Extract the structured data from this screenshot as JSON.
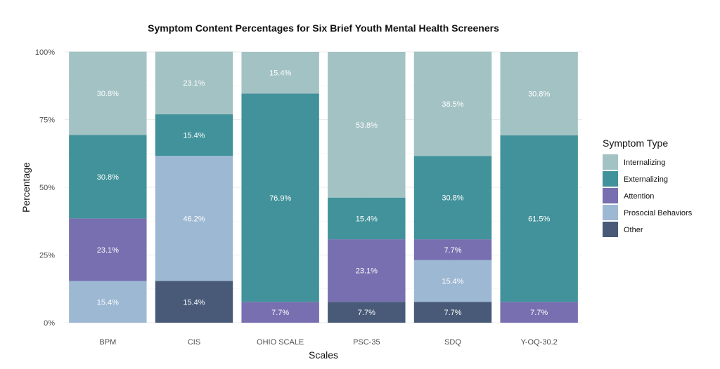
{
  "chart_data": {
    "type": "bar",
    "stacked": true,
    "title": "Symptom Content Percentages for Six Brief Youth Mental Health Screeners",
    "xlabel": "Scales",
    "ylabel": "Percentage",
    "ylim": [
      0,
      100
    ],
    "yticks": [
      "0%",
      "25%",
      "50%",
      "75%",
      "100%"
    ],
    "categories": [
      "BPM",
      "CIS",
      "OHIO SCALE",
      "PSC-35",
      "SDQ",
      "Y-OQ-30.2"
    ],
    "legend_title": "Symptom Type",
    "legend_position": "right",
    "grid": true,
    "series": [
      {
        "name": "Internalizing",
        "color": "#a3c2c4",
        "values": [
          30.8,
          23.1,
          15.4,
          53.8,
          38.5,
          30.8
        ]
      },
      {
        "name": "Externalizing",
        "color": "#41929a",
        "values": [
          30.8,
          15.4,
          76.9,
          15.4,
          30.8,
          61.5
        ]
      },
      {
        "name": "Attention",
        "color": "#776fb0",
        "values": [
          23.1,
          0,
          7.7,
          23.1,
          7.7,
          7.7
        ]
      },
      {
        "name": "Prosocial Behaviors",
        "color": "#9db8d3",
        "values": [
          15.4,
          46.2,
          0,
          0,
          15.4,
          0
        ]
      },
      {
        "name": "Other",
        "color": "#485a78",
        "values": [
          0,
          15.4,
          0,
          7.7,
          7.7,
          0
        ]
      }
    ],
    "stack_order_bottom_to_top": [
      "Other",
      "Prosocial Behaviors",
      "Attention",
      "Externalizing",
      "Internalizing"
    ]
  }
}
